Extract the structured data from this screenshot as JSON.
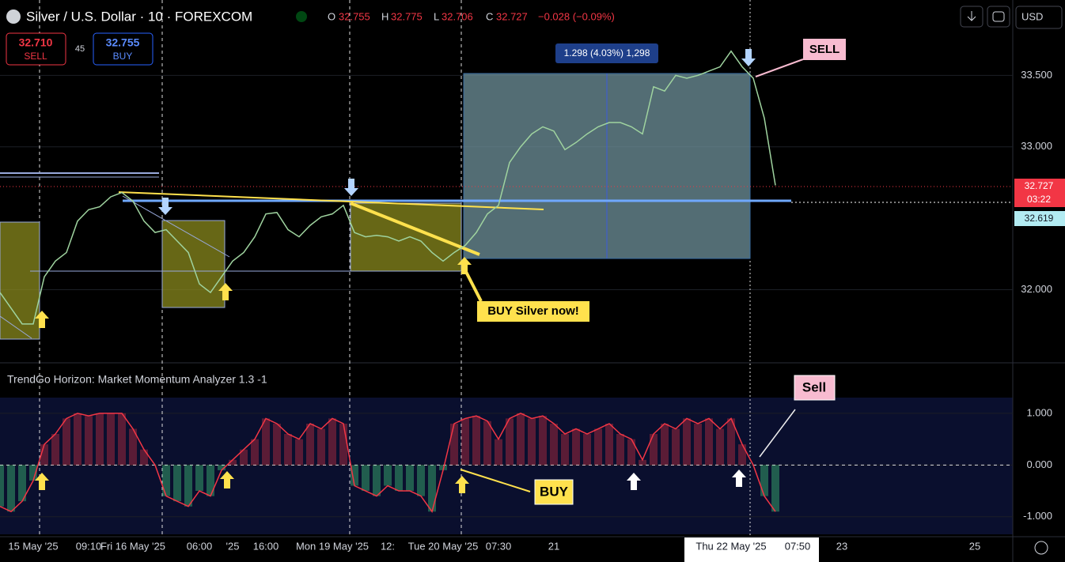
{
  "header": {
    "symbol": "Silver / U.S. Dollar · 10 · FOREXCOM",
    "o_label": "O",
    "o": "32.755",
    "h_label": "H",
    "h": "32.775",
    "l_label": "L",
    "l": "32.706",
    "c_label": "C",
    "c": "32.727",
    "change": "−0.028 (−0.09%)",
    "currency": "USD"
  },
  "trade": {
    "sell_price": "32.710",
    "sell": "SELL",
    "spread": "45",
    "buy_price": "32.755",
    "buy": "BUY"
  },
  "price_labels": {
    "last": "32.727",
    "countdown": "03:22",
    "level": "32.619"
  },
  "annotations": {
    "measure": "1.298 (4.03%) 1,298",
    "sell": "SELL",
    "buy_now": "BUY Silver now!",
    "osc_sell": "Sell",
    "osc_buy": "BUY"
  },
  "chart_data": [
    {
      "type": "line",
      "color": "#9fd39f",
      "categories": [
        null,
        null,
        null,
        "15 May '25",
        null,
        null,
        null,
        null,
        "09:10",
        null,
        null,
        null,
        "Fri 16 May '25",
        null,
        null,
        null,
        null,
        null,
        "06:00",
        null,
        null,
        "'25",
        null,
        null,
        "16:00",
        null,
        null,
        null,
        null,
        null,
        "Mon 19 May '25",
        null,
        null,
        null,
        null,
        "12:",
        null,
        null,
        null,
        null,
        "Tue 20 May '25",
        null,
        null,
        null,
        null,
        "07:30",
        null,
        null,
        null,
        null,
        "21",
        null,
        null,
        null,
        null,
        null,
        null,
        null,
        null,
        null,
        null,
        null,
        null,
        null,
        null,
        null,
        "Thu 22 May '25",
        null,
        null,
        null,
        null,
        null,
        "07:50",
        null,
        null,
        null,
        "23",
        null,
        null,
        null,
        null,
        null,
        null,
        null,
        null,
        null,
        null,
        null,
        "25",
        null,
        null,
        null
      ],
      "values": [
        31.98,
        31.87,
        31.76,
        31.76,
        32.09,
        32.2,
        32.26,
        32.48,
        32.56,
        32.58,
        32.65,
        32.68,
        32.62,
        32.48,
        32.4,
        32.42,
        32.34,
        32.26,
        32.04,
        31.98,
        32.09,
        32.2,
        32.26,
        32.37,
        32.53,
        32.54,
        32.42,
        32.37,
        32.45,
        32.51,
        32.53,
        32.59,
        32.4,
        32.37,
        32.38,
        32.37,
        32.34,
        32.37,
        32.34,
        32.26,
        32.2,
        32.26,
        32.31,
        32.4,
        32.53,
        32.59,
        32.89,
        33.0,
        33.09,
        33.14,
        33.11,
        32.98,
        33.03,
        33.09,
        33.14,
        33.17,
        33.17,
        33.14,
        33.09,
        33.42,
        33.39,
        33.5,
        33.48,
        33.5,
        33.53,
        33.56,
        33.67,
        33.56,
        33.48,
        33.2,
        32.73,
        null,
        null,
        null,
        null,
        null,
        null,
        null,
        null,
        null,
        null,
        null,
        null,
        null,
        null,
        null,
        null,
        null,
        null,
        null,
        null,
        null
      ],
      "ylim": [
        31.51,
        34.0
      ],
      "yticks": [
        {
          "value": 32,
          "label": "32.000"
        },
        {
          "value": 33,
          "label": "33.000"
        },
        {
          "value": 33.5,
          "label": "33.500"
        }
      ],
      "grid": true
    },
    {
      "type": "line",
      "title": "TrendGo Horizon: Market Momentum Analyzer 1.3 -1",
      "color": "#f23645",
      "negative_color": "#4cf08a",
      "values": [
        -0.8,
        -0.9,
        -0.7,
        -0.3,
        0.4,
        0.6,
        0.9,
        1.0,
        0.95,
        1.0,
        1.0,
        1.0,
        0.7,
        0.3,
        0.0,
        -0.6,
        -0.7,
        -0.8,
        -0.5,
        -0.6,
        -0.1,
        0.1,
        0.3,
        0.5,
        0.9,
        0.8,
        0.6,
        0.5,
        0.8,
        0.7,
        0.9,
        0.8,
        -0.4,
        -0.5,
        -0.6,
        -0.4,
        -0.5,
        -0.5,
        -0.6,
        -0.9,
        -0.1,
        0.8,
        0.9,
        0.95,
        0.85,
        0.5,
        0.9,
        1.0,
        0.9,
        0.95,
        0.8,
        0.6,
        0.7,
        0.6,
        0.7,
        0.8,
        0.6,
        0.5,
        0.1,
        0.6,
        0.8,
        0.7,
        0.9,
        0.8,
        0.9,
        0.7,
        0.9,
        0.4,
        0.0,
        -0.6,
        -0.9,
        null,
        null,
        null,
        null,
        null,
        null,
        null,
        null,
        null,
        null,
        null,
        null,
        null,
        null,
        null,
        null,
        null,
        null,
        null,
        null,
        null
      ],
      "ylim": [
        -1.37,
        1.93
      ],
      "yticks": [
        {
          "value": 1,
          "label": "1.000"
        },
        {
          "value": 0,
          "label": "0.000"
        },
        {
          "value": -1,
          "label": "-1.000"
        }
      ],
      "grid": true
    }
  ]
}
